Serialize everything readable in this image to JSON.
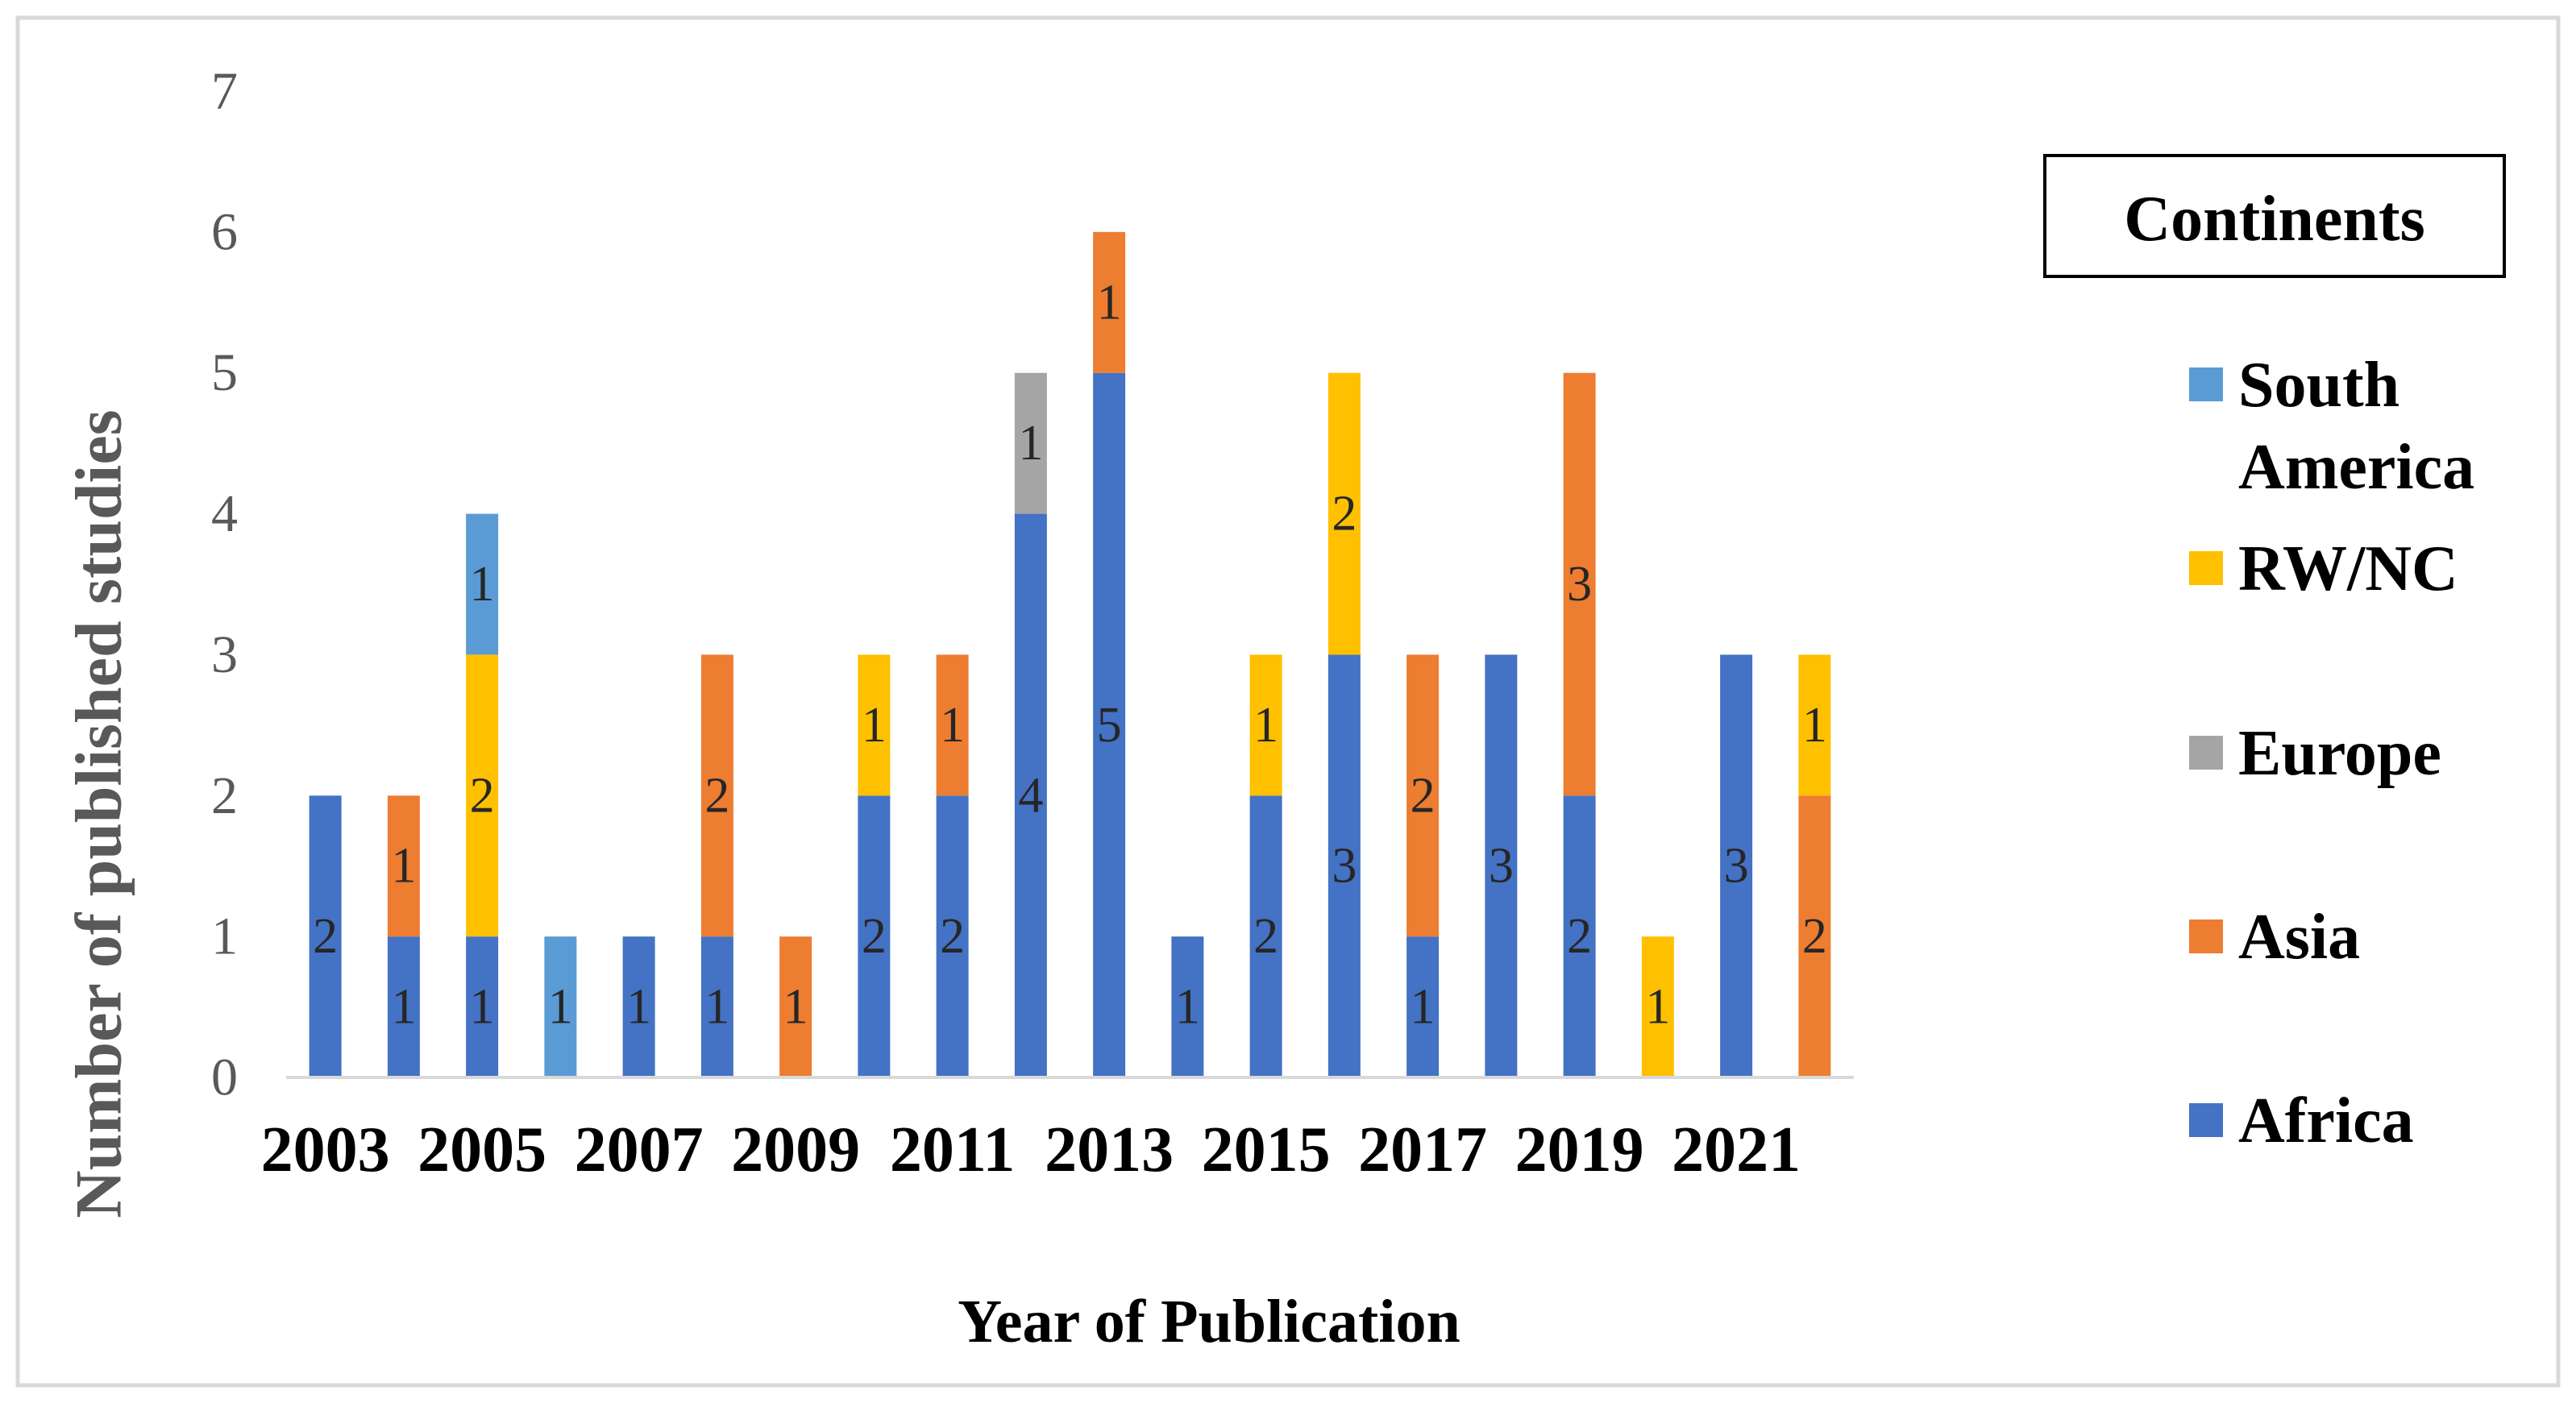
{
  "chart_data": {
    "type": "bar",
    "stacked": true,
    "title": "",
    "xlabel": "Year of Publication",
    "ylabel": "Number of published studies",
    "ylim": [
      0,
      7
    ],
    "yticks": [
      "0",
      "1",
      "2",
      "3",
      "4",
      "5",
      "6",
      "7"
    ],
    "categories": [
      "2003",
      "2004",
      "2005",
      "2006",
      "2007",
      "2008",
      "2009",
      "2010",
      "2011",
      "2012",
      "2013",
      "2014",
      "2015",
      "2016",
      "2017",
      "2018",
      "2019",
      "2020",
      "2021",
      "2022"
    ],
    "x_tick_labels": [
      "2003",
      "",
      "2005",
      "",
      "2007",
      "",
      "2009",
      "",
      "2011",
      "",
      "2013",
      "",
      "2015",
      "",
      "2017",
      "",
      "2019",
      "",
      "2021",
      ""
    ],
    "series": [
      {
        "name": "Africa",
        "color": "#4472C4",
        "values": [
          2,
          1,
          1,
          0,
          1,
          1,
          0,
          2,
          2,
          4,
          5,
          1,
          2,
          3,
          1,
          3,
          2,
          0,
          3,
          0
        ]
      },
      {
        "name": "Asia",
        "color": "#ED7D31",
        "values": [
          0,
          1,
          0,
          0,
          0,
          2,
          1,
          0,
          1,
          0,
          1,
          0,
          0,
          0,
          2,
          0,
          3,
          0,
          0,
          2
        ]
      },
      {
        "name": "Europe",
        "color": "#A5A5A5",
        "values": [
          0,
          0,
          0,
          0,
          0,
          0,
          0,
          0,
          0,
          1,
          0,
          0,
          0,
          0,
          0,
          0,
          0,
          0,
          0,
          0
        ]
      },
      {
        "name": "RW/NC",
        "color": "#FFC000",
        "values": [
          0,
          0,
          2,
          0,
          0,
          0,
          0,
          1,
          0,
          0,
          0,
          0,
          1,
          2,
          0,
          0,
          0,
          1,
          0,
          1
        ]
      },
      {
        "name": "South America",
        "color": "#5B9BD5",
        "values": [
          0,
          0,
          1,
          1,
          0,
          0,
          0,
          0,
          0,
          0,
          0,
          0,
          0,
          0,
          0,
          0,
          0,
          0,
          0,
          0
        ]
      }
    ],
    "data_labels": true,
    "grid": false,
    "legend": {
      "title": "Continents",
      "placement": "right",
      "order": [
        "South America",
        "RW/NC",
        "Europe",
        "Asia",
        "Africa"
      ],
      "display_lines": {
        "South America": [
          "South",
          "America"
        ],
        "RW/NC": [
          "RW/NC"
        ],
        "Europe": [
          "Europe"
        ],
        "Asia": [
          "Asia"
        ],
        "Africa": [
          "Africa"
        ]
      }
    }
  }
}
